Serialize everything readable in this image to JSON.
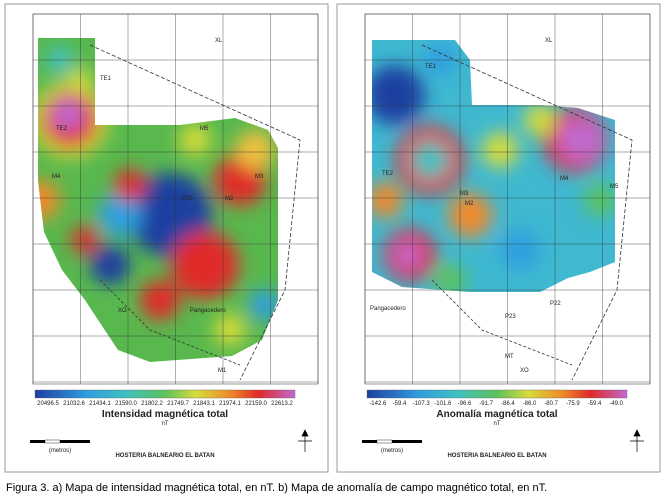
{
  "caption": "Figura 3. a) Mapa de intensidad magnética total, en nT. b) Mapa de anomalía de campo magnético total, en nT.",
  "panels": [
    {
      "title": "Intensidad magnética total",
      "unit": "nT",
      "scale_unit": "(metros)",
      "footer": "HOSTERIA BALNEARIO EL BATAN",
      "colorbar": [
        "20496.5",
        "21032.6",
        "21434.1",
        "21590.0",
        "21802.2",
        "21749.7",
        "21843.1",
        "21974.1",
        "22159.0",
        "22613.2"
      ],
      "labels": [
        "XL",
        "TE1",
        "TE2",
        "M5",
        "M4",
        "M3",
        "M2",
        "P22",
        "Pangacedero",
        "XO",
        "M1"
      ]
    },
    {
      "title": "Anomalía magnética total",
      "unit": "nT",
      "scale_unit": "(metros)",
      "footer": "HOSTERIA BALNEARIO EL BATAN",
      "colorbar": [
        "-142.6",
        "-59.4",
        "-107.3",
        "-101.6",
        "-96.6",
        "-91.7",
        "-86.4",
        "-86.0",
        "-80.7",
        "-75.9",
        "-59.4",
        "-49.0"
      ],
      "labels": [
        "XL",
        "TE1",
        "TE2",
        "M5",
        "M4",
        "M3",
        "M2",
        "P22",
        "P23",
        "Pangacedero",
        "XO",
        "MT"
      ]
    }
  ]
}
